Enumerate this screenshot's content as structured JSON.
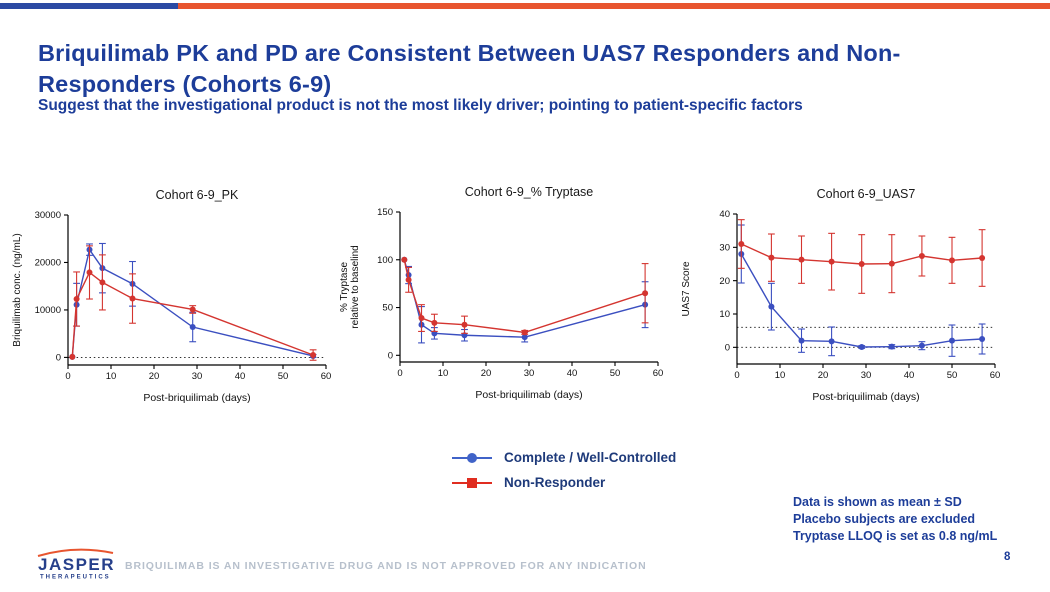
{
  "top_bar": {
    "blue_color": "#2b4aa3",
    "orange_color": "#e8552f"
  },
  "header": {
    "title_line1": "Briquilimab PK and PD are Consistent Between UAS7 Responders and Non-",
    "title_line2": "Responders (Cohorts 6-9)",
    "subtitle": "Suggest that the investigational product is not the most likely driver; pointing to patient-specific factors",
    "text_color": "#1d3d99"
  },
  "legend": {
    "items": [
      {
        "label": "Complete / Well-Controlled",
        "color": "#4063c8",
        "marker": "circle"
      },
      {
        "label": "Non-Responder",
        "color": "#e02d20",
        "marker": "square"
      }
    ],
    "text_color": "#1e3a7a"
  },
  "notes": {
    "lines": [
      "Data is shown as mean ± SD",
      "Placebo subjects are excluded",
      "Tryptase LLOQ is set as 0.8 ng/mL"
    ],
    "text_color": "#1d3d99"
  },
  "footer": {
    "logo_name": "JASPER",
    "logo_sub": "THERAPEUTICS",
    "logo_color": "#27408b",
    "logo_arc_color": "#e8552f",
    "disclaimer": "BRIQUILIMAB IS AN INVESTIGATIVE DRUG AND IS NOT APPROVED FOR ANY INDICATION",
    "page_number": "8"
  },
  "chart_data": [
    {
      "type": "line",
      "title": "Cohort 6-9_PK",
      "xlabel": "Post-briquilimab (days)",
      "ylabel": "Briquilimab conc. (ng/mL)",
      "ylabel_lines": [
        "Briquilimab conc. (ng/mL)"
      ],
      "xlim": [
        0,
        60
      ],
      "xticks": [
        0,
        10,
        20,
        30,
        40,
        50,
        60
      ],
      "ylim": [
        0,
        30000
      ],
      "ylim_display": [
        -1600,
        30000
      ],
      "yticks": [
        0,
        10000,
        20000,
        30000
      ],
      "dotted_y": [
        0
      ],
      "legend_position": "none",
      "grid": false,
      "series": [
        {
          "name": "Complete / Well-Controlled",
          "color": "#3b4fc0",
          "x": [
            1,
            2,
            5,
            8,
            15,
            29,
            57
          ],
          "y": [
            100,
            11100,
            22700,
            18800,
            15500,
            6400,
            300
          ],
          "sd": [
            0,
            4500,
            1200,
            5200,
            4700,
            3100,
            300
          ]
        },
        {
          "name": "Non-Responder",
          "color": "#d43530",
          "x": [
            1,
            2,
            5,
            8,
            15,
            29,
            57
          ],
          "y": [
            100,
            12300,
            17900,
            15800,
            12400,
            10100,
            500
          ],
          "sd": [
            0,
            5700,
            5600,
            5800,
            5200,
            800,
            1100
          ]
        }
      ]
    },
    {
      "type": "line",
      "title": "Cohort 6-9_% Tryptase",
      "xlabel": "Post-briquilimab (days)",
      "ylabel": "% Tryptase relative to baselind",
      "ylabel_lines": [
        "% Tryptase",
        "relative to baselind"
      ],
      "xlim": [
        0,
        60
      ],
      "xticks": [
        0,
        10,
        20,
        30,
        40,
        50,
        60
      ],
      "ylim": [
        0,
        150
      ],
      "ylim_display": [
        -7,
        150
      ],
      "yticks": [
        0,
        50,
        100,
        150
      ],
      "dotted_y": [],
      "legend_position": "none",
      "grid": false,
      "series": [
        {
          "name": "Complete / Well-Controlled",
          "color": "#3b4fc0",
          "x": [
            1,
            2,
            5,
            8,
            15,
            29,
            57
          ],
          "y": [
            100,
            84,
            32,
            23,
            21,
            19,
            53
          ],
          "sd": [
            0,
            9,
            19,
            6,
            6,
            5,
            24
          ]
        },
        {
          "name": "Non-Responder",
          "color": "#d43530",
          "x": [
            1,
            2,
            5,
            8,
            15,
            29,
            57
          ],
          "y": [
            100,
            79,
            39,
            34,
            32,
            24,
            65
          ],
          "sd": [
            0,
            13,
            14,
            9,
            9,
            2,
            31
          ]
        }
      ]
    },
    {
      "type": "line",
      "title": "Cohort 6-9_UAS7",
      "xlabel": "Post-briquilimab (days)",
      "ylabel": "UAS7 Score",
      "ylabel_lines": [
        "UAS7 Score"
      ],
      "xlim": [
        0,
        60
      ],
      "xticks": [
        0,
        10,
        20,
        30,
        40,
        50,
        60
      ],
      "ylim": [
        0,
        40
      ],
      "ylim_display": [
        -5,
        40
      ],
      "yticks": [
        0,
        10,
        20,
        30,
        40
      ],
      "dotted_y": [
        0,
        6
      ],
      "legend_position": "none",
      "grid": false,
      "series": [
        {
          "name": "Complete / Well-Controlled",
          "color": "#3b4fc0",
          "x": [
            1,
            8,
            15,
            22,
            29,
            36,
            43,
            50,
            57
          ],
          "y": [
            28,
            12.2,
            2,
            1.8,
            0.1,
            0.2,
            0.5,
            2,
            2.5
          ],
          "sd": [
            8.7,
            7,
            3.5,
            4.3,
            0.4,
            0.6,
            1.2,
            4.7,
            4.5
          ]
        },
        {
          "name": "Non-Responder",
          "color": "#d43530",
          "x": [
            1,
            8,
            15,
            22,
            29,
            36,
            43,
            50,
            57
          ],
          "y": [
            31,
            26.9,
            26.3,
            25.7,
            25,
            25.1,
            27.4,
            26.1,
            26.8
          ],
          "sd": [
            7.3,
            7.1,
            7.1,
            8.5,
            8.8,
            8.7,
            6,
            6.9,
            8.5
          ]
        }
      ]
    }
  ]
}
